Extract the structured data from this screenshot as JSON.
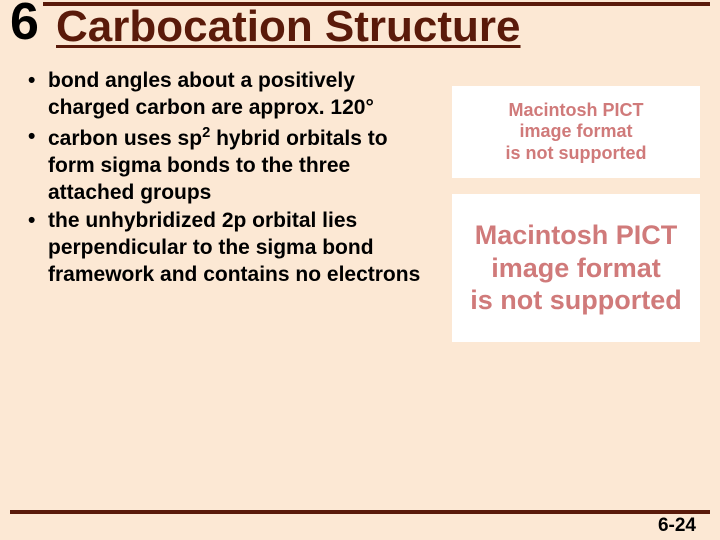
{
  "chapter_number": "6",
  "title": "Carbocation Structure",
  "bullets": [
    {
      "text_html": "bond angles about a positively charged carbon are approx. 120°"
    },
    {
      "text_html": "carbon uses sp<sup>2</sup> hybrid orbitals to form sigma bonds to the three attached groups"
    },
    {
      "text_html": "the unhybridized 2p orbital lies perpendicular to the sigma bond framework and contains no electrons"
    }
  ],
  "placeholder_small": {
    "line1": "Macintosh PICT",
    "line2": "image format",
    "line3": "is not supported"
  },
  "placeholder_large": {
    "line1": "Macintosh PICT",
    "line2": "image format",
    "line3": "is not supported"
  },
  "page_number": "6-24",
  "colors": {
    "background": "#fce8d4",
    "rule": "#5a1a0a",
    "title": "#5a1a0a",
    "placeholder_text": "#d07a7a",
    "placeholder_bg": "#ffffff"
  }
}
